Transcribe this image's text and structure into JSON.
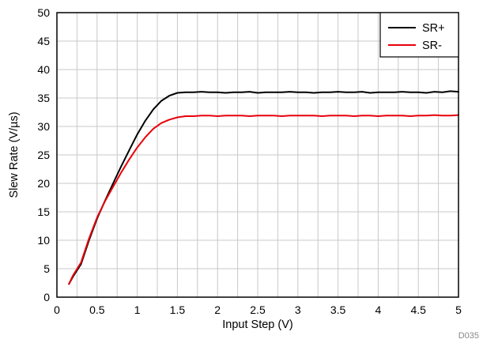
{
  "chart_data": {
    "type": "line",
    "title": "",
    "xlabel": "Input Step (V)",
    "ylabel": "Slew Rate (V/µs)",
    "xlim": [
      0,
      5
    ],
    "ylim": [
      0,
      50
    ],
    "x_ticks": [
      0,
      0.5,
      1,
      1.5,
      2,
      2.5,
      3,
      3.5,
      4,
      4.5,
      5
    ],
    "x_tick_labels": [
      "0",
      "0.5",
      "1",
      "1.5",
      "2",
      "2.5",
      "3",
      "3.5",
      "4",
      "4.5",
      "5"
    ],
    "y_ticks": [
      0,
      5,
      10,
      15,
      20,
      25,
      30,
      35,
      40,
      45,
      50
    ],
    "y_tick_labels": [
      "0",
      "5",
      "10",
      "15",
      "20",
      "25",
      "30",
      "35",
      "40",
      "45",
      "50"
    ],
    "x_minor_step": 0.25,
    "grid": true,
    "legend_position": "top-right",
    "series": [
      {
        "name": "SR+",
        "color": "#000000",
        "x": [
          0.15,
          0.2,
          0.3,
          0.4,
          0.5,
          0.6,
          0.7,
          0.8,
          0.9,
          1.0,
          1.1,
          1.2,
          1.3,
          1.4,
          1.5,
          1.6,
          1.7,
          1.8,
          1.9,
          2.0,
          2.1,
          2.2,
          2.3,
          2.4,
          2.5,
          2.6,
          2.7,
          2.8,
          2.9,
          3.0,
          3.1,
          3.2,
          3.3,
          3.4,
          3.5,
          3.6,
          3.7,
          3.8,
          3.9,
          4.0,
          4.1,
          4.2,
          4.3,
          4.4,
          4.5,
          4.6,
          4.7,
          4.8,
          4.9,
          5.0
        ],
        "values": [
          2.3,
          3.6,
          5.8,
          10.0,
          13.8,
          17.0,
          20.0,
          23.0,
          25.8,
          28.6,
          31.0,
          33.0,
          34.5,
          35.4,
          35.9,
          36.0,
          36.0,
          36.1,
          36.0,
          36.0,
          35.9,
          36.0,
          36.0,
          36.1,
          35.9,
          36.0,
          36.0,
          36.0,
          36.1,
          36.0,
          36.0,
          35.9,
          36.0,
          36.0,
          36.1,
          36.0,
          36.0,
          36.1,
          35.9,
          36.0,
          36.0,
          36.0,
          36.1,
          36.0,
          36.0,
          35.9,
          36.1,
          36.0,
          36.2,
          36.1
        ]
      },
      {
        "name": "SR-",
        "color": "#e8000b",
        "x": [
          0.15,
          0.2,
          0.3,
          0.4,
          0.5,
          0.6,
          0.7,
          0.8,
          0.9,
          1.0,
          1.1,
          1.2,
          1.3,
          1.4,
          1.5,
          1.6,
          1.7,
          1.8,
          1.9,
          2.0,
          2.1,
          2.2,
          2.3,
          2.4,
          2.5,
          2.6,
          2.7,
          2.8,
          2.9,
          3.0,
          3.1,
          3.2,
          3.3,
          3.4,
          3.5,
          3.6,
          3.7,
          3.8,
          3.9,
          4.0,
          4.1,
          4.2,
          4.3,
          4.4,
          4.5,
          4.6,
          4.7,
          4.8,
          4.9,
          5.0
        ],
        "values": [
          2.3,
          3.8,
          6.1,
          10.3,
          14.0,
          16.9,
          19.4,
          21.9,
          24.2,
          26.3,
          28.1,
          29.6,
          30.6,
          31.2,
          31.6,
          31.8,
          31.8,
          31.9,
          31.9,
          31.8,
          31.9,
          31.9,
          31.9,
          31.8,
          31.9,
          31.9,
          31.9,
          31.8,
          31.9,
          31.9,
          31.9,
          31.9,
          31.8,
          31.9,
          31.9,
          31.9,
          31.8,
          31.9,
          31.9,
          31.8,
          31.9,
          31.9,
          31.9,
          31.8,
          31.9,
          31.9,
          32.0,
          31.9,
          31.9,
          32.0
        ]
      }
    ],
    "figure_code": "D035"
  }
}
